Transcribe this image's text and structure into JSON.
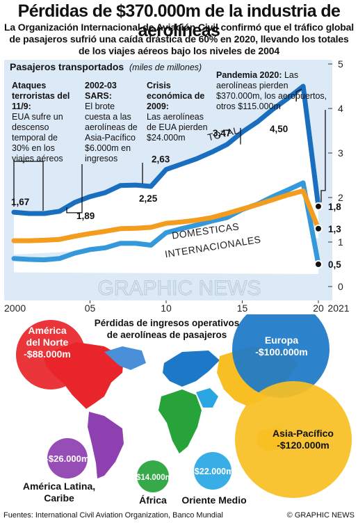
{
  "title": "Pérdidas de $370.000m de la industria de aerolíneas",
  "subtitle": "La Organización Internacional de Aviación Civil confirmó que el tráfico global de pasajeros sufrió una caída drástica de 60% en 2020, llevando los totales de los viajes aéreos bajo los niveles de 2004",
  "colors": {
    "total": "#1a6ec0",
    "domestic": "#f39c1e",
    "international": "#3498db",
    "panel": "#dce9f6",
    "north_america": "#e8262b",
    "latin_america": "#8e3fb0",
    "africa": "#27a33a",
    "europe": "#1d78c8",
    "middle_east": "#2aa7e3",
    "asia_pacific": "#f7bf23"
  },
  "chart_data": {
    "type": "line",
    "title": "Pasajeros transportados",
    "subtitle": "(miles de millones)",
    "xlabel": "",
    "ylabel": "",
    "xlim": [
      2000,
      2021
    ],
    "ylim": [
      0,
      5
    ],
    "x_tick_values": [
      2000,
      2005,
      2010,
      2015,
      2020,
      2021
    ],
    "x_tick_labels": [
      "2000",
      "05",
      "10",
      "15",
      "20",
      "2021"
    ],
    "y_ticks": [
      0,
      1,
      2,
      3,
      4,
      5
    ],
    "x": [
      2000,
      2001,
      2002,
      2003,
      2004,
      2005,
      2006,
      2007,
      2008,
      2009,
      2010,
      2011,
      2012,
      2013,
      2014,
      2015,
      2016,
      2017,
      2018,
      2019,
      2020
    ],
    "series": [
      {
        "name": "TOTAL",
        "values": [
          1.67,
          1.64,
          1.64,
          1.69,
          1.89,
          2.02,
          2.11,
          2.27,
          2.28,
          2.25,
          2.63,
          2.75,
          2.87,
          3.02,
          3.19,
          3.47,
          3.7,
          3.98,
          4.23,
          4.5,
          1.8
        ]
      },
      {
        "name": "DOMESTICAS",
        "values": [
          1.03,
          1.03,
          1.04,
          1.06,
          1.13,
          1.19,
          1.24,
          1.3,
          1.31,
          1.33,
          1.42,
          1.45,
          1.49,
          1.55,
          1.64,
          1.74,
          1.84,
          1.95,
          2.06,
          2.15,
          1.3
        ]
      },
      {
        "name": "INTERNACIONALES",
        "values": [
          0.63,
          0.61,
          0.6,
          0.63,
          0.75,
          0.83,
          0.87,
          0.97,
          0.97,
          0.93,
          1.21,
          1.3,
          1.38,
          1.47,
          1.55,
          1.73,
          1.85,
          2.02,
          2.17,
          2.33,
          0.5
        ]
      }
    ],
    "point_labels": [
      {
        "x": 2000,
        "value": "1,67"
      },
      {
        "x": 2004,
        "value": "1,89"
      },
      {
        "x": 2009,
        "value": "2,25"
      },
      {
        "x": 2010,
        "value": "2,63"
      },
      {
        "x": 2015,
        "value": "3,47"
      },
      {
        "x": 2019,
        "value": "4,50"
      },
      {
        "x": 2020,
        "value": "1,8"
      },
      {
        "x": 2020,
        "value": "1,3"
      },
      {
        "x": 2020,
        "value": "0,5"
      }
    ]
  },
  "annotations": [
    {
      "head": "Ataques terroristas del 11/9:",
      "body": "EUA sufre un descenso temporal de 30% en los viajes aéreos"
    },
    {
      "head": "2002-03 SARS:",
      "body": "El brote cuesta a las aerolíneas de Asia-Pacífico $6.000m en ingresos"
    },
    {
      "head": "Crisis económica de 2009:",
      "body": "Las aerolíneas de EUA pierden $24.000m"
    },
    {
      "head": "Pandemia 2020:",
      "body": "Las aerolíneas pierden $370.000m, los aeropuertos, otros $115.000m"
    }
  ],
  "losses": {
    "title": "Pérdidas de ingresos operativos de aerolíneas de pasajeros",
    "regions": [
      {
        "name": "América del Norte",
        "value": "-$88.000m",
        "amount": 88000
      },
      {
        "name": "Europa",
        "value": "-$100.000m",
        "amount": 100000
      },
      {
        "name": "Asia-Pacífico",
        "value": "-$120.000m",
        "amount": 120000
      },
      {
        "name": "América Latina, Caribe",
        "value": "-$26.000m",
        "amount": 26000
      },
      {
        "name": "África",
        "value": "-$14.000m",
        "amount": 14000
      },
      {
        "name": "Oriente Medio",
        "value": "-$22.000m",
        "amount": 22000
      }
    ]
  },
  "watermark": "GRAPHIC NEWS",
  "watermark_sub": "INTERNACIONALES",
  "source": "Fuentes: International Civil Aviation Organization, Banco Mundial",
  "credit": "© GRAPHIC NEWS"
}
